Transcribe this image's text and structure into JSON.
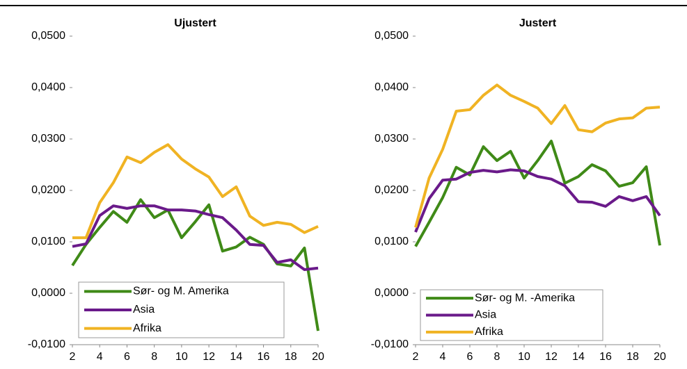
{
  "chart_data": [
    {
      "type": "line",
      "title": "Ujustert",
      "x": [
        2,
        3,
        4,
        5,
        6,
        7,
        8,
        9,
        10,
        11,
        12,
        13,
        14,
        15,
        16,
        17,
        18,
        19,
        20
      ],
      "xlim": [
        2,
        20
      ],
      "xticks": [
        2,
        4,
        6,
        8,
        10,
        12,
        14,
        16,
        18,
        20
      ],
      "ylim": [
        -0.01,
        0.05
      ],
      "yticks": [
        {
          "value": -0.01,
          "label": "-0,0100"
        },
        {
          "value": 0,
          "label": "0,0000"
        },
        {
          "value": 0.01,
          "label": "0,0100"
        },
        {
          "value": 0.02,
          "label": "0,0200"
        },
        {
          "value": 0.03,
          "label": "0,0300"
        },
        {
          "value": 0.04,
          "label": "0,0400"
        },
        {
          "value": 0.05,
          "label": "0,0500"
        }
      ],
      "legend": "lower left",
      "series": [
        {
          "name": "Sør- og M. Amerika",
          "color": "#3f8a17",
          "values": [
            0.0054,
            0.0095,
            0.0128,
            0.0159,
            0.0138,
            0.0182,
            0.0147,
            0.0162,
            0.0108,
            0.0139,
            0.0172,
            0.0082,
            0.009,
            0.0109,
            0.0095,
            0.0057,
            0.0053,
            0.0088,
            -0.0073
          ]
        },
        {
          "name": "Asia",
          "color": "#6a1a8a",
          "values": [
            0.0091,
            0.0096,
            0.0151,
            0.017,
            0.0165,
            0.017,
            0.017,
            0.0162,
            0.0162,
            0.016,
            0.0153,
            0.0147,
            0.0123,
            0.0095,
            0.0093,
            0.006,
            0.0065,
            0.0046,
            0.0049
          ]
        },
        {
          "name": "Afrika",
          "color": "#f0b323",
          "values": [
            0.0108,
            0.0108,
            0.0176,
            0.0215,
            0.0265,
            0.0254,
            0.0274,
            0.0289,
            0.0261,
            0.0242,
            0.0226,
            0.0188,
            0.0207,
            0.015,
            0.0132,
            0.0138,
            0.0134,
            0.0118,
            0.013
          ]
        }
      ]
    },
    {
      "type": "line",
      "title": "Justert",
      "x": [
        2,
        3,
        4,
        5,
        6,
        7,
        8,
        9,
        10,
        11,
        12,
        13,
        14,
        15,
        16,
        17,
        18,
        19,
        20
      ],
      "xlim": [
        2,
        20
      ],
      "xticks": [
        2,
        4,
        6,
        8,
        10,
        12,
        14,
        16,
        18,
        20
      ],
      "ylim": [
        -0.01,
        0.05
      ],
      "yticks": [
        {
          "value": -0.01,
          "label": "-0,0100"
        },
        {
          "value": 0,
          "label": "0,0000"
        },
        {
          "value": 0.01,
          "label": "0,0100"
        },
        {
          "value": 0.02,
          "label": "0,0200"
        },
        {
          "value": 0.03,
          "label": "0,0300"
        },
        {
          "value": 0.04,
          "label": "0,0400"
        },
        {
          "value": 0.05,
          "label": "0,0500"
        }
      ],
      "legend": "lower left",
      "series": [
        {
          "name": "Sør- og M. -Amerika",
          "color": "#3f8a17",
          "values": [
            0.0091,
            0.0138,
            0.0186,
            0.0245,
            0.023,
            0.0285,
            0.0258,
            0.0276,
            0.0224,
            0.0258,
            0.0296,
            0.0214,
            0.0227,
            0.025,
            0.0238,
            0.0208,
            0.0215,
            0.0246,
            0.0093
          ]
        },
        {
          "name": "Asia",
          "color": "#6a1a8a",
          "values": [
            0.0119,
            0.0184,
            0.022,
            0.0222,
            0.0235,
            0.0239,
            0.0236,
            0.024,
            0.0238,
            0.0227,
            0.0222,
            0.0209,
            0.0178,
            0.0177,
            0.0169,
            0.0188,
            0.018,
            0.0188,
            0.0151
          ]
        },
        {
          "name": "Afrika",
          "color": "#f0b323",
          "values": [
            0.0128,
            0.0224,
            0.028,
            0.0354,
            0.0357,
            0.0385,
            0.0405,
            0.0385,
            0.0373,
            0.036,
            0.033,
            0.0365,
            0.0318,
            0.0314,
            0.0331,
            0.0339,
            0.0341,
            0.036,
            0.0362
          ]
        }
      ]
    }
  ]
}
